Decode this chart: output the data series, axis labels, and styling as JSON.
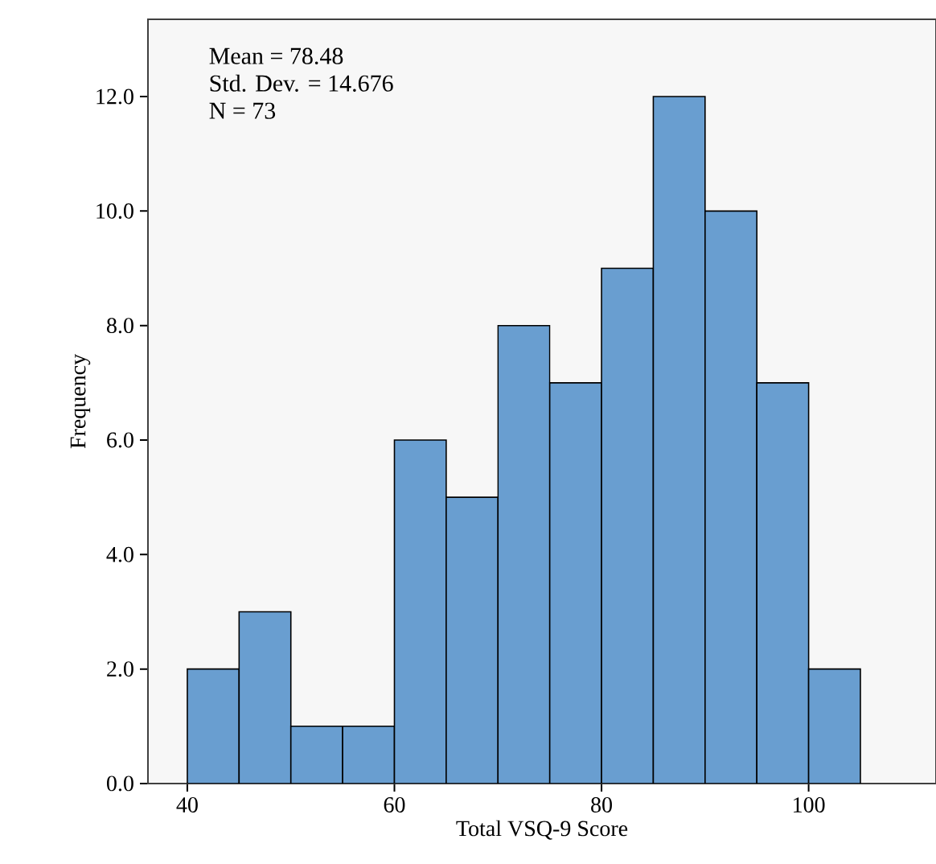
{
  "chart_data": {
    "type": "histogram",
    "xlabel": "Total VSQ-9 Score",
    "ylabel": "Frequency",
    "bins": [
      40,
      45,
      50,
      55,
      60,
      65,
      70,
      75,
      80,
      85,
      90,
      95,
      100,
      105
    ],
    "values": [
      2,
      3,
      1,
      1,
      6,
      5,
      8,
      7,
      9,
      12,
      10,
      7,
      2
    ],
    "color": "#699ed0",
    "xlim": [
      36.2,
      112.3
    ],
    "xticks": [
      40,
      60,
      80,
      100
    ],
    "ylim": [
      0,
      13.35
    ],
    "yticks": [
      {
        "value": 0,
        "label": "0.0"
      },
      {
        "value": 2,
        "label": "2.0"
      },
      {
        "value": 4,
        "label": "4.0"
      },
      {
        "value": 6,
        "label": "6.0"
      },
      {
        "value": 8,
        "label": "8.0"
      },
      {
        "value": 10,
        "label": "10.0"
      },
      {
        "value": 12,
        "label": "12.0"
      }
    ],
    "annotations": [
      "Mean = 78.48",
      "Std. Dev. = 14.676",
      "N = 73"
    ],
    "grid": false
  }
}
